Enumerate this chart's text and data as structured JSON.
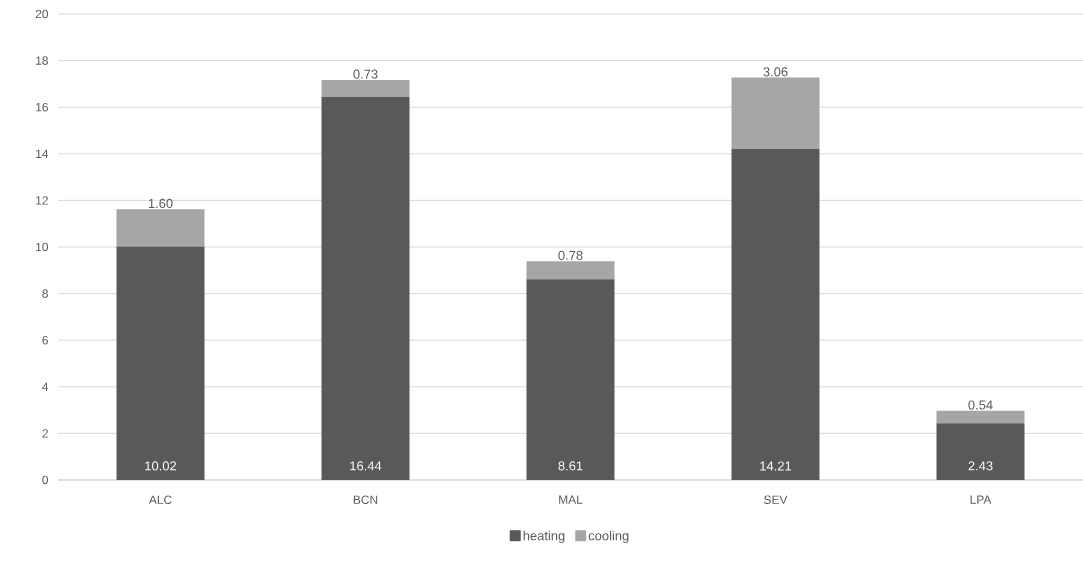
{
  "chart_data": {
    "type": "bar",
    "stacked": true,
    "categories": [
      "ALC",
      "BCN",
      "MAL",
      "SEV",
      "LPA"
    ],
    "series": [
      {
        "name": "heating",
        "color": "#595959",
        "values": [
          10.02,
          16.44,
          8.61,
          14.21,
          2.43
        ],
        "value_labels": [
          "10.02",
          "16.44",
          "8.61",
          "14.21",
          "2.43"
        ]
      },
      {
        "name": "cooling",
        "color": "#a6a6a6",
        "values": [
          1.6,
          0.73,
          0.78,
          3.06,
          0.54
        ],
        "value_labels": [
          "1.60",
          "0.73",
          "0.78",
          "3.06",
          "0.54"
        ]
      }
    ],
    "ylim": [
      0,
      20
    ],
    "yticks": [
      0,
      2,
      4,
      6,
      8,
      10,
      12,
      14,
      16,
      18,
      20
    ],
    "grid": "y",
    "legend": "bottom"
  }
}
